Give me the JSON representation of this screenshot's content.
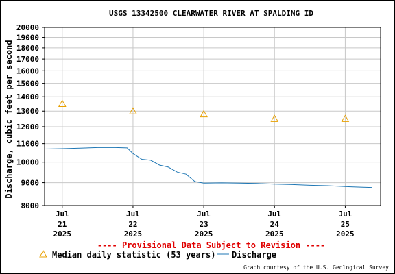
{
  "chart_data": {
    "type": "line",
    "title": "USGS 13342500 CLEARWATER RIVER AT SPALDING ID",
    "ylabel": "Discharge, cubic feet per second",
    "xlabel": "",
    "y_scale": "log",
    "ylim": [
      8000,
      20000
    ],
    "xlim": [
      "2025-07-20T18:00",
      "2025-07-25T12:00"
    ],
    "y_ticks": [
      "20000",
      "19000",
      "18000",
      "17000",
      "16000",
      "15000",
      "14000",
      "13000",
      "12000",
      "11000",
      "10000",
      "9000",
      "8000"
    ],
    "x_ticks": [
      {
        "month": "Jul",
        "day": "21",
        "year": "2025"
      },
      {
        "month": "Jul",
        "day": "22",
        "year": "2025"
      },
      {
        "month": "Jul",
        "day": "23",
        "year": "2025"
      },
      {
        "month": "Jul",
        "day": "24",
        "year": "2025"
      },
      {
        "month": "Jul",
        "day": "25",
        "year": "2025"
      }
    ],
    "grid": true,
    "series": [
      {
        "name": "Discharge",
        "type": "line",
        "color": "#1f77b4",
        "x": [
          "2025-07-20T18:00",
          "2025-07-21T00:00",
          "2025-07-21T06:00",
          "2025-07-21T12:00",
          "2025-07-21T18:00",
          "2025-07-21T22:00",
          "2025-07-22T00:00",
          "2025-07-22T03:00",
          "2025-07-22T06:00",
          "2025-07-22T09:00",
          "2025-07-22T12:00",
          "2025-07-22T15:00",
          "2025-07-22T18:00",
          "2025-07-22T21:00",
          "2025-07-23T00:00",
          "2025-07-23T06:00",
          "2025-07-23T12:00",
          "2025-07-23T18:00",
          "2025-07-24T00:00",
          "2025-07-24T06:00",
          "2025-07-24T12:00",
          "2025-07-24T18:00",
          "2025-07-25T00:00",
          "2025-07-25T06:00",
          "2025-07-25T09:00"
        ],
        "y": [
          10700,
          10720,
          10750,
          10780,
          10780,
          10760,
          10450,
          10150,
          10100,
          9850,
          9750,
          9500,
          9400,
          9050,
          8980,
          8990,
          8980,
          8960,
          8930,
          8910,
          8880,
          8860,
          8820,
          8790,
          8780
        ]
      },
      {
        "name": "Median daily statistic (53 years)",
        "type": "scatter",
        "marker": "triangle",
        "color": "#e8a000",
        "x": [
          "2025-07-21T00:00",
          "2025-07-22T00:00",
          "2025-07-23T00:00",
          "2025-07-24T00:00",
          "2025-07-25T00:00"
        ],
        "y": [
          13500,
          13000,
          12800,
          12500,
          12500
        ]
      }
    ]
  },
  "provisional": "---- Provisional Data Subject to Revision ----",
  "legend": {
    "median_label": "Median daily statistic (53 years)",
    "discharge_label": "Discharge"
  },
  "courtesy": "Graph courtesy of the U.S. Geological Survey"
}
